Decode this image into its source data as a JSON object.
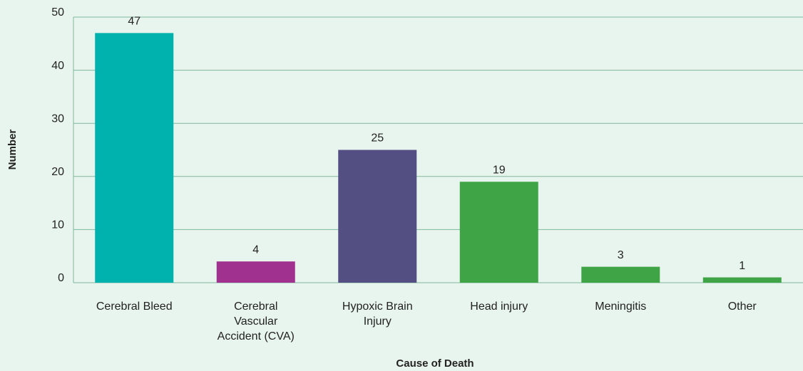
{
  "chart_data": {
    "type": "bar",
    "x_label": "Cause of Death",
    "y_label": "Number",
    "categories": [
      "Cerebral Bleed",
      "Cerebral Vascular Accident (CVA)",
      "Hypoxic Brain Injury",
      "Head injury",
      "Meningitis",
      "Other"
    ],
    "values": [
      47,
      4,
      25,
      19,
      3,
      1
    ],
    "colors": [
      "#00b2ad",
      "#a0318f",
      "#534f83",
      "#3ea446",
      "#3ea446",
      "#3ea446"
    ],
    "ylim": [
      0,
      50
    ],
    "yticks": [
      0,
      10,
      20,
      30,
      40,
      50
    ],
    "grid": true,
    "data_labels": true
  }
}
